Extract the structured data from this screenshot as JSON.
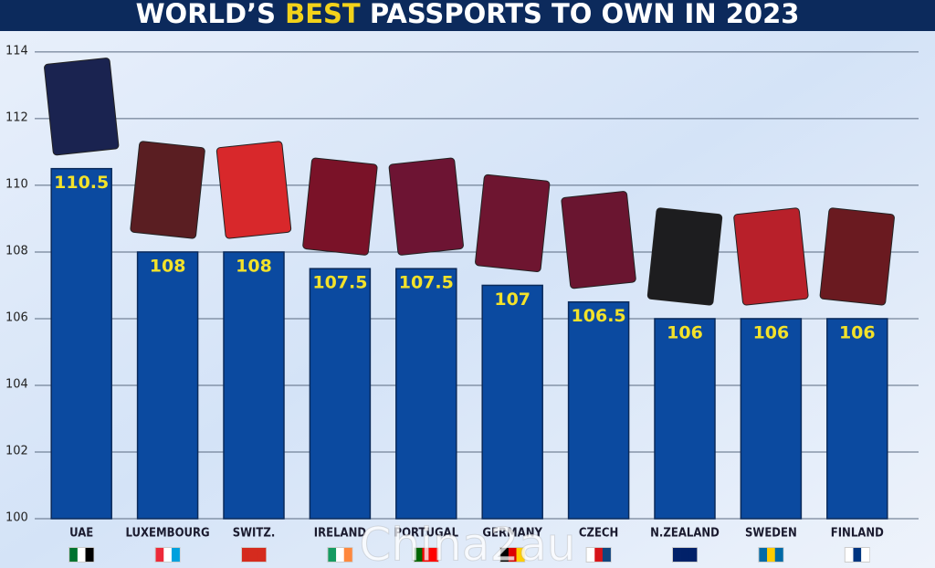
{
  "chart_data": {
    "type": "bar",
    "title": [
      "WORLD’S",
      "BEST",
      "PASSPORTS TO OWN IN 2023"
    ],
    "categories": [
      "UAE",
      "LUXEMBOURG",
      "SWITZ.",
      "IRELAND",
      "PORTUGAL",
      "GERMANY",
      "CZECH",
      "N.ZEALAND",
      "SWEDEN",
      "FINLAND"
    ],
    "values": [
      110.5,
      108,
      108,
      107.5,
      107.5,
      107,
      106.5,
      106,
      106,
      106
    ],
    "color": "#0b4aa0",
    "ylim": [
      100,
      114.6
    ],
    "yticks": [
      100,
      102,
      104,
      106,
      108,
      110,
      112,
      114
    ],
    "grid": true,
    "watermark": "China2au"
  }
}
